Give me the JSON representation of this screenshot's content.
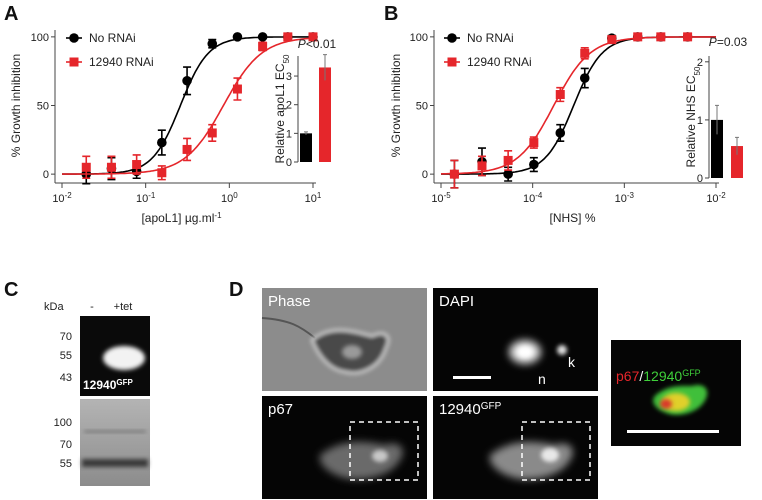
{
  "panel_labels": [
    "A",
    "B",
    "C",
    "D"
  ],
  "chart_data": [
    {
      "type": "line",
      "xscale": "log",
      "ylabel": "% Growth inhibition",
      "xlabel": [
        "[apoL1] µg.ml",
        "-1"
      ],
      "xlim": [
        0.01,
        10
      ],
      "xticks": [
        {
          "value": 0.01,
          "label": [
            "10",
            "-2"
          ]
        },
        {
          "value": 0.1,
          "label": [
            "10",
            "-1"
          ]
        },
        {
          "value": 1,
          "label": [
            "10",
            "0"
          ]
        },
        {
          "value": 10,
          "label": [
            "10",
            "1"
          ]
        }
      ],
      "ylim": [
        -5,
        105
      ],
      "yticks": [
        0,
        50,
        100
      ],
      "x": [
        0.0195,
        0.039,
        0.078,
        0.156,
        0.3125,
        0.625,
        1.25,
        2.5,
        5,
        10
      ],
      "series": [
        {
          "name": "No RNAi",
          "color": "#000000",
          "marker": "circle",
          "values": [
            0,
            4,
            2,
            23,
            68,
            95,
            100,
            100,
            100,
            100
          ],
          "errors": [
            7,
            8,
            5,
            9,
            10,
            3,
            1,
            1,
            1,
            1
          ],
          "fit": {
            "ec50": 0.26,
            "hill": 2.6
          }
        },
        {
          "name": "12940 RNAi",
          "color": "#e5262b",
          "marker": "square",
          "values": [
            5,
            5,
            7,
            1,
            18,
            30,
            62,
            93,
            100,
            100
          ],
          "errors": [
            8,
            8,
            7,
            5,
            8,
            6,
            8,
            3,
            1,
            1
          ],
          "fit": {
            "ec50": 0.85,
            "hill": 1.9
          }
        }
      ]
    },
    {
      "type": "bar",
      "ylabel": [
        "Relative apoL1 EC",
        "50"
      ],
      "annotation": [
        "P",
        "<0.01"
      ],
      "ylim": [
        0,
        3.7
      ],
      "yticks": [
        0,
        1,
        2,
        3
      ],
      "values": [
        1.0,
        3.3
      ],
      "errors": [
        0.05,
        0.45
      ],
      "colors": [
        "#000000",
        "#e5262b"
      ]
    },
    {
      "type": "line",
      "xscale": "log",
      "ylabel": "% Growth inhibition",
      "xlabel": [
        "[NHS] %"
      ],
      "xlim": [
        1e-05,
        0.01
      ],
      "xticks": [
        {
          "value": 1e-05,
          "label": [
            "10",
            "-5"
          ]
        },
        {
          "value": 0.0001,
          "label": [
            "10",
            "-4"
          ]
        },
        {
          "value": 0.001,
          "label": [
            "10",
            "-3"
          ]
        },
        {
          "value": 0.01,
          "label": [
            "10",
            "-2"
          ]
        }
      ],
      "ylim": [
        -5,
        105
      ],
      "yticks": [
        0,
        50,
        100
      ],
      "x": [
        1.4e-05,
        2.8e-05,
        5.4e-05,
        0.000103,
        0.0002,
        0.00037,
        0.00073,
        0.0014,
        0.0025,
        0.0049
      ],
      "series": [
        {
          "name": "No RNAi",
          "color": "#000000",
          "marker": "circle",
          "values": [
            0,
            9,
            0,
            7,
            30,
            70,
            99,
            100,
            100,
            100
          ],
          "errors": [
            10,
            10,
            5,
            5,
            6,
            7,
            2,
            1,
            1,
            1
          ],
          "fit": {
            "ec50": 0.00028,
            "hill": 2.8
          }
        },
        {
          "name": "12940 RNAi",
          "color": "#e5262b",
          "marker": "square",
          "values": [
            0,
            6,
            10,
            23,
            58,
            88,
            98,
            100,
            100,
            100
          ],
          "errors": [
            10,
            7,
            7,
            4,
            5,
            4,
            2,
            1,
            1,
            1
          ],
          "fit": {
            "ec50": 0.00017,
            "hill": 2.2
          }
        }
      ]
    },
    {
      "type": "bar",
      "ylabel": [
        "Relative NHS EC",
        "50"
      ],
      "annotation": [
        "P",
        "=0.03"
      ],
      "ylim": [
        0,
        2.1
      ],
      "yticks": [
        0,
        1,
        2
      ],
      "values": [
        1.0,
        0.55
      ],
      "errors": [
        0.25,
        0.15
      ],
      "colors": [
        "#000000",
        "#e5262b"
      ]
    }
  ],
  "blot": {
    "unit": "kDa",
    "lanes": [
      "-",
      "+tet"
    ],
    "top_markers": [
      70,
      55,
      43
    ],
    "bottom_markers": [
      100,
      70,
      55
    ],
    "top_label": [
      "12940",
      "GFP"
    ]
  },
  "microscopy": {
    "panels": [
      {
        "label": "Phase"
      },
      {
        "label": "DAPI",
        "marks": [
          "n",
          "k"
        ]
      },
      {
        "label": "p67"
      },
      {
        "label": [
          "12940",
          "GFP"
        ]
      }
    ],
    "merge": {
      "label": [
        "p67",
        "/",
        "12940",
        "GFP"
      ]
    }
  }
}
